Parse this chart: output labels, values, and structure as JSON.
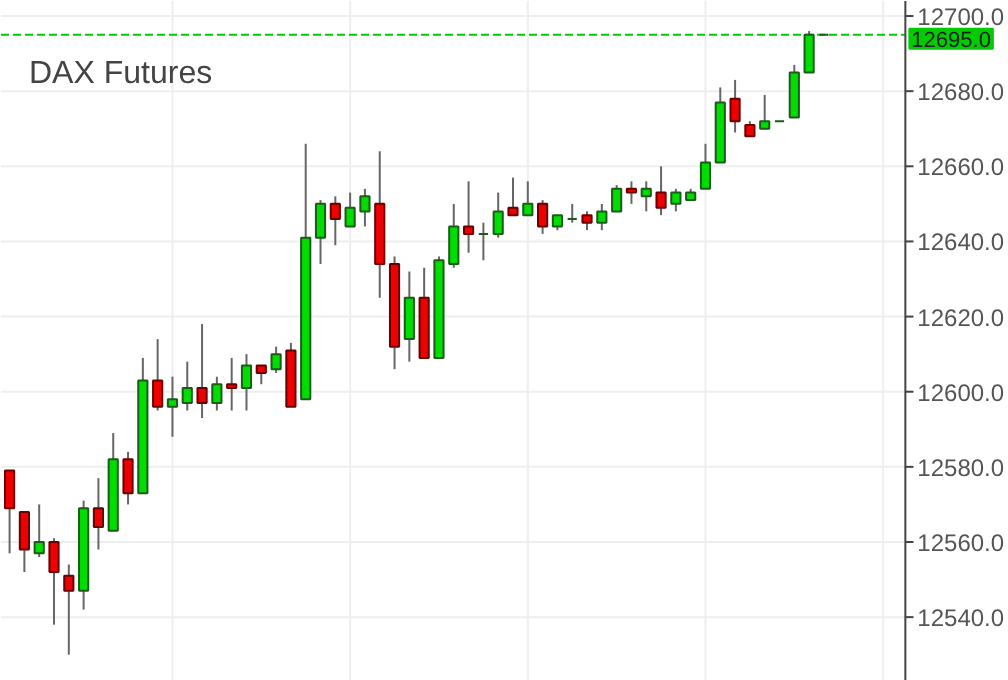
{
  "chart_data": {
    "type": "candlestick",
    "title": "DAX Futures",
    "categories": [
      null,
      null,
      null,
      null,
      null,
      null,
      null,
      null,
      null,
      null,
      null,
      null,
      null,
      null,
      null,
      null,
      null,
      null,
      null,
      null,
      null,
      null,
      null,
      null,
      null,
      null,
      null,
      null,
      null,
      null,
      null,
      null,
      null,
      null,
      null,
      null,
      null,
      null,
      null,
      null,
      null,
      null,
      null,
      null,
      null,
      null,
      null,
      null,
      null,
      null,
      null,
      null,
      null,
      null,
      null,
      null
    ],
    "ohlc": [
      [
        12579,
        12579,
        12557,
        12569
      ],
      [
        12568,
        12568,
        12552,
        12558
      ],
      [
        12557,
        12570,
        12556,
        12560
      ],
      [
        12560,
        12561,
        12538,
        12552
      ],
      [
        12551,
        12554,
        12530,
        12547
      ],
      [
        12547,
        12571,
        12542,
        12569
      ],
      [
        12569,
        12577,
        12558,
        12564
      ],
      [
        12563,
        12589,
        12563,
        12582
      ],
      [
        12582,
        12584,
        12570,
        12573
      ],
      [
        12573,
        12609,
        12573,
        12603
      ],
      [
        12603,
        12614,
        12595,
        12596
      ],
      [
        12596,
        12604,
        12588,
        12598
      ],
      [
        12597,
        12608,
        12595,
        12601
      ],
      [
        12601,
        12618,
        12593,
        12597
      ],
      [
        12597,
        12604,
        12595,
        12602
      ],
      [
        12602,
        12609,
        12595,
        12601
      ],
      [
        12601,
        12610,
        12595,
        12607
      ],
      [
        12607,
        12607,
        12602,
        12605
      ],
      [
        12606,
        12612,
        12605,
        12610
      ],
      [
        12611,
        12613,
        12596,
        12596
      ],
      [
        12598,
        12666,
        12598,
        12641
      ],
      [
        12641,
        12651,
        12634,
        12650
      ],
      [
        12650,
        12652,
        12639,
        12646
      ],
      [
        12644,
        12653,
        12644,
        12649
      ],
      [
        12648,
        12654,
        12644,
        12652
      ],
      [
        12650,
        12664,
        12625,
        12634
      ],
      [
        12634,
        12636,
        12606,
        12612
      ],
      [
        12614,
        12632,
        12608,
        12625
      ],
      [
        12625,
        12633,
        12609,
        12609
      ],
      [
        12609,
        12636,
        12609,
        12635
      ],
      [
        12634,
        12650,
        12633,
        12644
      ],
      [
        12644,
        12656,
        12637,
        12642
      ],
      [
        12642,
        12645,
        12635,
        12642
      ],
      [
        12642,
        12653,
        12641,
        12648
      ],
      [
        12649,
        12657,
        12647,
        12647
      ],
      [
        12647,
        12656,
        12647,
        12650
      ],
      [
        12650,
        12651,
        12642,
        12644
      ],
      [
        12644,
        12647,
        12643,
        12647
      ],
      [
        12646,
        12650,
        12645,
        12646
      ],
      [
        12647,
        12648,
        12643,
        12645
      ],
      [
        12645,
        12650,
        12643,
        12648
      ],
      [
        12648,
        12655,
        12648,
        12654
      ],
      [
        12654,
        12656,
        12650,
        12653
      ],
      [
        12652,
        12656,
        12648,
        12654
      ],
      [
        12653,
        12660,
        12647,
        12649
      ],
      [
        12650,
        12654,
        12648,
        12653
      ],
      [
        12651,
        12654,
        12651,
        12653
      ],
      [
        12654,
        12666,
        12654,
        12661
      ],
      [
        12661,
        12681,
        12661,
        12677
      ],
      [
        12678,
        12683,
        12669,
        12672
      ],
      [
        12671,
        12672,
        12668,
        12668
      ],
      [
        12670,
        12679,
        12670,
        12672
      ],
      [
        12672,
        12672,
        12672,
        12672
      ],
      [
        12673,
        12687,
        12673,
        12685
      ],
      [
        12685,
        12696,
        12685,
        12695
      ],
      [
        12695,
        12695,
        12695,
        12695
      ]
    ],
    "ylim": [
      12523,
      12704
    ],
    "yticks": [
      {
        "value": 12540,
        "label": "12540.0"
      },
      {
        "value": 12560,
        "label": "12560.0"
      },
      {
        "value": 12580,
        "label": "12580.0"
      },
      {
        "value": 12600,
        "label": "12600.0"
      },
      {
        "value": 12620,
        "label": "12620.0"
      },
      {
        "value": 12640,
        "label": "12640.0"
      },
      {
        "value": 12660,
        "label": "12660.0"
      },
      {
        "value": 12680,
        "label": "12680.0"
      },
      {
        "value": 12700,
        "label": "12700.0"
      }
    ],
    "ref_lines": [
      {
        "axis": "y",
        "value": 12695,
        "label": "12695.0",
        "color": "#00cc00",
        "line_style": "dashed"
      }
    ],
    "grid": true,
    "tick_labels": "y"
  }
}
